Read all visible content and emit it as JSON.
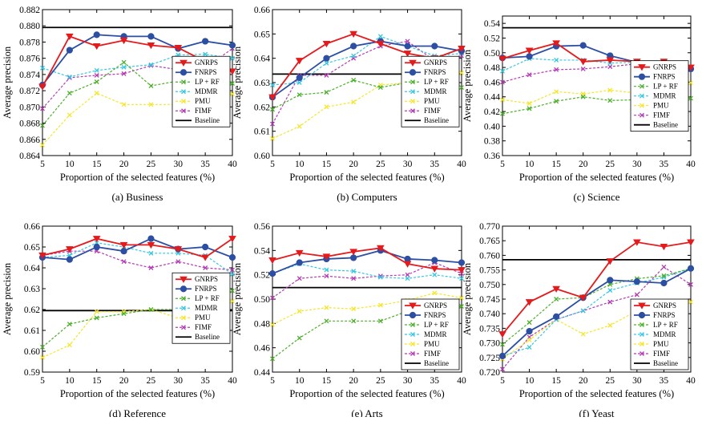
{
  "series_names": [
    "GNRPS",
    "FNRPS",
    "LP + RF",
    "MDMR",
    "PMU",
    "FIMF",
    "Baseline"
  ],
  "series_colors": [
    "#e41a1c",
    "#2c4fa3",
    "#4caf2a",
    "#37c7e0",
    "#f5e62a",
    "#b33bb3",
    "#000000"
  ],
  "x_values": [
    5,
    10,
    15,
    20,
    25,
    30,
    35,
    40
  ],
  "chart_data": [
    {
      "type": "line",
      "caption": "(a) Business",
      "xlabel": "Proportion of the selected features (%)",
      "ylabel": "Average precision",
      "xlim": [
        5,
        40
      ],
      "ylim": [
        0.864,
        0.882
      ],
      "y_ticks": [
        "0.864",
        "0.866",
        "0.868",
        "0.870",
        "0.872",
        "0.874",
        "0.876",
        "0.878",
        "0.880",
        "0.882"
      ],
      "legend_position": "right",
      "baseline": 0.8798,
      "series": [
        {
          "name": "GNRPS",
          "values": [
            0.8725,
            0.8787,
            0.8775,
            0.8782,
            0.8776,
            0.8773,
            0.8756,
            0.8744
          ]
        },
        {
          "name": "FNRPS",
          "values": [
            0.8727,
            0.877,
            0.8789,
            0.8787,
            0.8787,
            0.8772,
            0.8781,
            0.8776
          ]
        },
        {
          "name": "LP + RF",
          "values": [
            0.8677,
            0.8717,
            0.8731,
            0.8755,
            0.8726,
            0.8732,
            0.8735,
            0.8729
          ]
        },
        {
          "name": "MDMR",
          "values": [
            0.8748,
            0.8737,
            0.8745,
            0.8749,
            0.8752,
            0.8764,
            0.8765,
            0.876
          ]
        },
        {
          "name": "PMU",
          "values": [
            0.8653,
            0.869,
            0.8717,
            0.8703,
            0.8703,
            0.8703,
            0.8706,
            0.8716
          ]
        },
        {
          "name": "FIMF",
          "values": [
            0.8698,
            0.8736,
            0.8739,
            0.8741,
            0.8751,
            0.8746,
            0.8748,
            0.8772
          ]
        }
      ]
    },
    {
      "type": "line",
      "caption": "(b) Computers",
      "xlabel": "Proportion of the selected features (%)",
      "ylabel": "Average precision",
      "xlim": [
        5,
        40
      ],
      "ylim": [
        0.6,
        0.66
      ],
      "y_ticks": [
        "0.60",
        "0.61",
        "0.62",
        "0.63",
        "0.64",
        "0.65",
        "0.66"
      ],
      "legend_position": "right",
      "baseline": 0.6335,
      "series": [
        {
          "name": "GNRPS",
          "values": [
            0.624,
            0.639,
            0.646,
            0.65,
            0.646,
            0.642,
            0.64,
            0.644
          ]
        },
        {
          "name": "FNRPS",
          "values": [
            0.624,
            0.632,
            0.64,
            0.645,
            0.647,
            0.645,
            0.645,
            0.643
          ]
        },
        {
          "name": "LP + RF",
          "values": [
            0.619,
            0.625,
            0.626,
            0.631,
            0.628,
            0.63,
            0.63,
            0.628
          ]
        },
        {
          "name": "MDMR",
          "values": [
            0.629,
            0.63,
            0.638,
            0.641,
            0.649,
            0.645,
            0.641,
            0.642
          ]
        },
        {
          "name": "PMU",
          "values": [
            0.607,
            0.612,
            0.62,
            0.622,
            0.629,
            0.63,
            0.632,
            0.634
          ]
        },
        {
          "name": "FIMF",
          "values": [
            0.613,
            0.633,
            0.633,
            0.64,
            0.645,
            0.647,
            0.639,
            0.641
          ]
        }
      ]
    },
    {
      "type": "line",
      "caption": "(c) Science",
      "xlabel": "Proportion of the selected features (%)",
      "ylabel": "Average precision",
      "xlim": [
        5,
        40
      ],
      "ylim": [
        0.36,
        0.55
      ],
      "y_ticks": [
        "0.36",
        "0.38",
        "0.40",
        "0.42",
        "0.44",
        "0.46",
        "0.48",
        "0.50",
        "0.52",
        "0.54"
      ],
      "legend_position": "right",
      "baseline": 0.534,
      "series": [
        {
          "name": "GNRPS",
          "values": [
            0.492,
            0.503,
            0.513,
            0.488,
            0.49,
            0.488,
            0.488,
            0.48
          ]
        },
        {
          "name": "FNRPS",
          "values": [
            0.493,
            0.495,
            0.509,
            0.51,
            0.496,
            0.487,
            0.475,
            0.478
          ]
        },
        {
          "name": "LP + RF",
          "values": [
            0.417,
            0.424,
            0.434,
            0.44,
            0.435,
            0.436,
            0.441,
            0.438
          ]
        },
        {
          "name": "MDMR",
          "values": [
            0.475,
            0.492,
            0.49,
            0.49,
            0.486,
            0.487,
            0.482,
            0.478
          ]
        },
        {
          "name": "PMU",
          "values": [
            0.436,
            0.431,
            0.447,
            0.444,
            0.449,
            0.445,
            0.45,
            0.459
          ]
        },
        {
          "name": "FIMF",
          "values": [
            0.46,
            0.47,
            0.477,
            0.478,
            0.481,
            0.485,
            0.478,
            0.477
          ]
        }
      ]
    },
    {
      "type": "line",
      "caption": "(d) Reference",
      "xlabel": "Proportion of the selected features (%)",
      "ylabel": "Average precision",
      "xlim": [
        5,
        40
      ],
      "ylim": [
        0.59,
        0.66
      ],
      "y_ticks": [
        "0.59",
        "0.60",
        "0.61",
        "0.62",
        "0.63",
        "0.64",
        "0.65",
        "0.66"
      ],
      "legend_position": "right",
      "baseline": 0.6195,
      "series": [
        {
          "name": "GNRPS",
          "values": [
            0.646,
            0.649,
            0.654,
            0.651,
            0.651,
            0.649,
            0.645,
            0.654
          ]
        },
        {
          "name": "FNRPS",
          "values": [
            0.645,
            0.644,
            0.65,
            0.648,
            0.654,
            0.649,
            0.65,
            0.645
          ]
        },
        {
          "name": "LP + RF",
          "values": [
            0.602,
            0.613,
            0.616,
            0.618,
            0.62,
            0.62,
            0.621,
            0.629
          ]
        },
        {
          "name": "MDMR",
          "values": [
            0.645,
            0.646,
            0.652,
            0.65,
            0.647,
            0.647,
            0.646,
            0.637
          ]
        },
        {
          "name": "PMU",
          "values": [
            0.597,
            0.603,
            0.619,
            0.619,
            0.62,
            0.616,
            0.617,
            0.624
          ]
        },
        {
          "name": "FIMF",
          "values": [
            0.646,
            0.648,
            0.648,
            0.643,
            0.64,
            0.643,
            0.64,
            0.639
          ]
        }
      ]
    },
    {
      "type": "line",
      "caption": "(e) Arts",
      "xlabel": "Proportion of the selected features (%)",
      "ylabel": "Average precision",
      "xlim": [
        5,
        40
      ],
      "ylim": [
        0.44,
        0.56
      ],
      "y_ticks": [
        "0.44",
        "0.46",
        "0.48",
        "0.50",
        "0.52",
        "0.54",
        "0.56"
      ],
      "legend_position": "bottom-right",
      "baseline": 0.5095,
      "series": [
        {
          "name": "GNRPS",
          "values": [
            0.532,
            0.538,
            0.535,
            0.539,
            0.542,
            0.529,
            0.525,
            0.524
          ]
        },
        {
          "name": "FNRPS",
          "values": [
            0.521,
            0.53,
            0.533,
            0.534,
            0.54,
            0.533,
            0.532,
            0.53
          ]
        },
        {
          "name": "LP + RF",
          "values": [
            0.451,
            0.468,
            0.482,
            0.482,
            0.482,
            0.49,
            0.493,
            0.494
          ]
        },
        {
          "name": "MDMR",
          "values": [
            0.521,
            0.529,
            0.524,
            0.523,
            0.518,
            0.517,
            0.52,
            0.517
          ]
        },
        {
          "name": "PMU",
          "values": [
            0.479,
            0.49,
            0.493,
            0.492,
            0.495,
            0.499,
            0.505,
            0.501
          ]
        },
        {
          "name": "FIMF",
          "values": [
            0.501,
            0.517,
            0.519,
            0.517,
            0.519,
            0.52,
            0.53,
            0.521
          ]
        }
      ]
    },
    {
      "type": "line",
      "caption": "(f) Yeast",
      "xlabel": "Proportion of the selected features (%)",
      "ylabel": "Average precision",
      "xlim": [
        5,
        40
      ],
      "ylim": [
        0.72,
        0.77
      ],
      "y_ticks": [
        "0.720",
        "0.725",
        "0.730",
        "0.735",
        "0.740",
        "0.745",
        "0.750",
        "0.755",
        "0.760",
        "0.765",
        "0.770"
      ],
      "legend_position": "bottom-right",
      "baseline": 0.7585,
      "series": [
        {
          "name": "GNRPS",
          "values": [
            0.733,
            0.744,
            0.7485,
            0.7455,
            0.758,
            0.7645,
            0.763,
            0.7645
          ]
        },
        {
          "name": "FNRPS",
          "values": [
            0.7255,
            0.734,
            0.739,
            0.7455,
            0.7515,
            0.751,
            0.7505,
            0.7555
          ]
        },
        {
          "name": "LP + RF",
          "values": [
            0.7295,
            0.737,
            0.745,
            0.7455,
            0.75,
            0.752,
            0.753,
            0.7555
          ]
        },
        {
          "name": "MDMR",
          "values": [
            0.7255,
            0.7285,
            0.738,
            0.741,
            0.748,
            0.7505,
            0.7525,
            0.7555
          ]
        },
        {
          "name": "PMU",
          "values": [
            0.7245,
            0.731,
            0.738,
            0.733,
            0.736,
            0.741,
            0.739,
            0.744
          ]
        },
        {
          "name": "FIMF",
          "values": [
            0.721,
            0.732,
            0.738,
            0.741,
            0.744,
            0.7465,
            0.756,
            0.75
          ]
        }
      ]
    }
  ]
}
